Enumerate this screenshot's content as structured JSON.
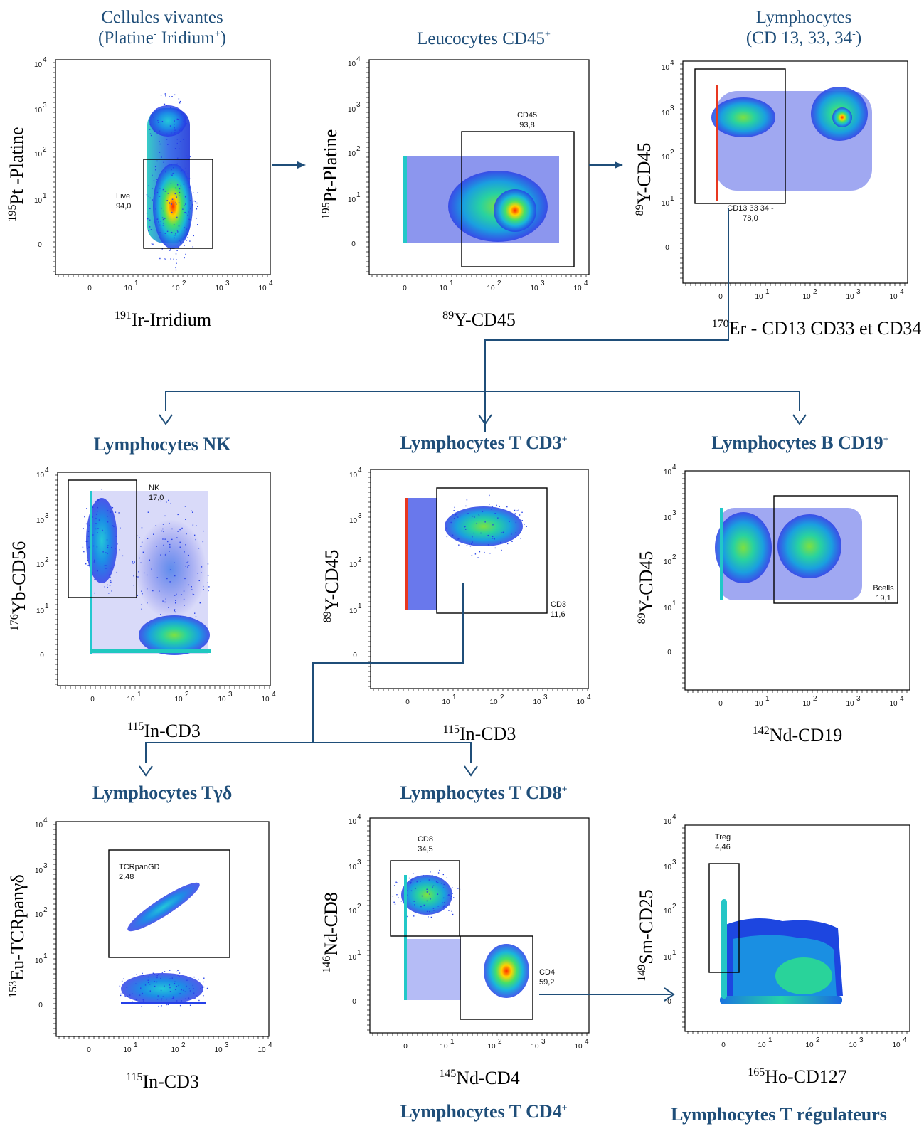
{
  "panels": {
    "live": {
      "title_l1": "Cellules vivantes",
      "title_l2_a": "(Platine",
      "title_l2_sup1": "-",
      "title_l2_b": " Iridium",
      "title_l2_sup2": "+",
      "title_l2_c": ")",
      "y_iso": "195",
      "y_label": "Pt -Platine",
      "x_iso": "191",
      "x_label": "Ir-Irridium",
      "gate": {
        "name": "Live",
        "value": "94,0"
      }
    },
    "leuco": {
      "title_a": "Leucocytes CD45",
      "title_sup": "+",
      "y_iso": "195",
      "y_label": "Pt-Platine",
      "x_iso": "89",
      "x_label": "Y-CD45",
      "gate": {
        "name": "CD45",
        "value": "93,8"
      }
    },
    "lympho": {
      "title_l1": "Lymphocytes",
      "title_l2_a": "(CD 13, 33, 34",
      "title_l2_sup": "-",
      "title_l2_b": ")",
      "y_iso": "89",
      "y_label": "Y-CD45",
      "x_iso": "170",
      "x_label": "Er - CD13 CD33 et CD34",
      "gate": {
        "name": "CD13 33 34 -",
        "value": "78,0"
      }
    },
    "nk": {
      "title": "Lymphocytes NK",
      "y_iso": "176",
      "y_label": "Yb-CD56",
      "x_iso": "115",
      "x_label": "In-CD3",
      "gate": {
        "name": "NK",
        "value": "17,0"
      }
    },
    "t": {
      "title_a": "Lymphocytes T  CD3",
      "title_sup": "+",
      "y_iso": "89",
      "y_label": "Y-CD45",
      "x_iso": "115",
      "x_label": "In-CD3",
      "gate": {
        "name": "CD3",
        "value": "11,6"
      }
    },
    "b": {
      "title_a": "Lymphocytes B  CD19",
      "title_sup": "+",
      "y_iso": "89",
      "y_label": "Y-CD45",
      "x_iso": "142",
      "x_label": "Nd-CD19",
      "gate": {
        "name": "Bcells",
        "value": "19,1"
      }
    },
    "tgd": {
      "title": "Lymphocytes Tγδ",
      "y_iso": "153",
      "y_label": "Eu-TCRpanγδ",
      "x_iso": "115",
      "x_label": "In-CD3",
      "gate": {
        "name": "TCRpanGD",
        "value": "2,48"
      }
    },
    "cd8": {
      "title_a": "Lymphocytes T CD8",
      "title_sup": "+",
      "y_iso": "146",
      "y_label": "Nd-CD8",
      "x_iso": "145",
      "x_label": "Nd-CD4",
      "gate": {
        "name": "CD8",
        "value": "34,5"
      },
      "gate2": {
        "name": "CD4",
        "value": "59,2"
      },
      "bottom_title_a": "Lymphocytes T CD4",
      "bottom_title_sup": "+"
    },
    "treg": {
      "y_iso": "149",
      "y_label": "Sm-CD25",
      "x_iso": "165",
      "x_label": "Ho-CD127",
      "gate": {
        "name": "Treg",
        "value": "4,46"
      },
      "bottom_title": "Lymphocytes T régulateurs"
    }
  },
  "axis_ticks": {
    "exp": [
      "1",
      "2",
      "3",
      "4"
    ],
    "base": "10",
    "zero": "0"
  },
  "colors": {
    "title": "#1f4e79",
    "arrow": "#1f4e79",
    "gate": "#000000"
  }
}
